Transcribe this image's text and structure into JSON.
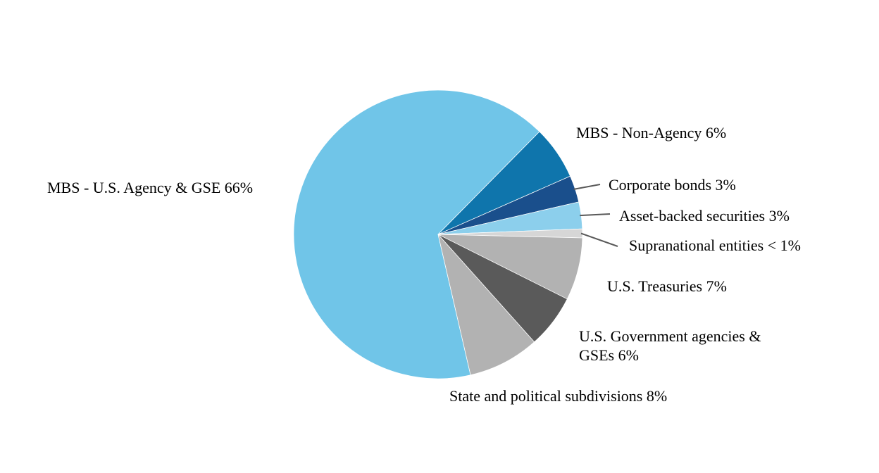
{
  "chart_data": {
    "type": "pie",
    "title": "",
    "legend_position": "none",
    "start_angle_deg": 167,
    "background_color": "#ffffff",
    "slice_border_color": "#ffffff",
    "leader_line_color": "#595959",
    "slices": [
      {
        "label": "MBS - U.S. Agency & GSE",
        "display": "MBS - U.S. Agency & GSE 66%",
        "value": 66,
        "pct_text": "66%",
        "color": "#70C5E8"
      },
      {
        "label": "MBS - Non-Agency",
        "display": "MBS - Non-Agency 6%",
        "value": 6,
        "pct_text": "6%",
        "color": "#0F75AC"
      },
      {
        "label": "Corporate bonds",
        "display": "Corporate bonds 3%",
        "value": 3,
        "pct_text": "3%",
        "color": "#1A4F8C"
      },
      {
        "label": "Asset-backed securities",
        "display": "Asset-backed securities 3%",
        "value": 3,
        "pct_text": "3%",
        "color": "#8CCFEC"
      },
      {
        "label": "Supranational entities",
        "display": "Supranational entities < 1%",
        "value": 1,
        "pct_text": "< 1%",
        "color": "#D6D6D6"
      },
      {
        "label": "U.S. Treasuries",
        "display": "U.S. Treasuries 7%",
        "value": 7,
        "pct_text": "7%",
        "color": "#B2B2B2"
      },
      {
        "label": "U.S. Government agencies & GSEs",
        "display": "U.S. Government agencies & GSEs 6%",
        "value": 6,
        "pct_text": "6%",
        "color": "#5A5A5A"
      },
      {
        "label": "State and political subdivisions",
        "display": "State and political subdivisions 8%",
        "value": 8,
        "pct_text": "8%",
        "color": "#B2B2B2"
      }
    ]
  }
}
